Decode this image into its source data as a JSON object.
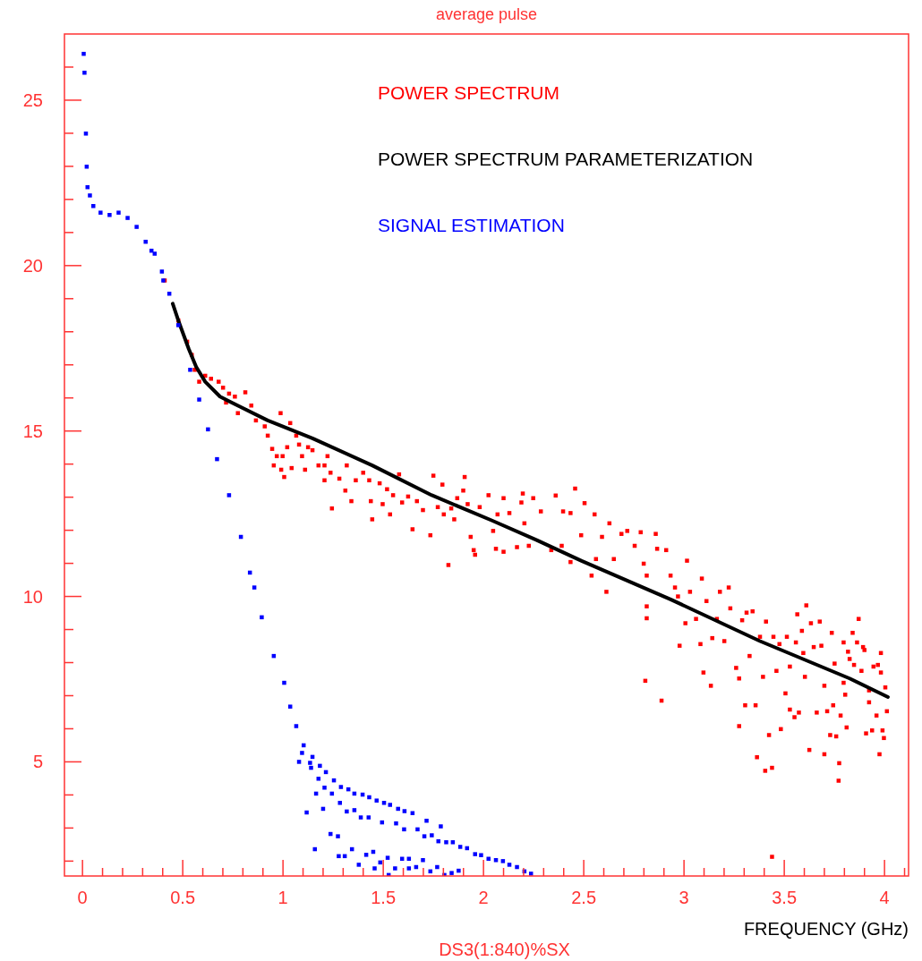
{
  "chart_data": {
    "type": "scatter",
    "title": "average pulse",
    "xlabel": "FREQUENCY (GHz)",
    "annotations": [
      "DS3(1:840)%SX"
    ],
    "xlim": [
      -0.09,
      4.12
    ],
    "ylim": [
      1.55,
      27
    ],
    "legend": "top",
    "xticks": [
      0,
      {
        "value": 0.1,
        "label": null
      },
      {
        "value": 0.2,
        "label": null
      },
      {
        "value": 0.3,
        "label": null
      },
      {
        "value": 0.4,
        "label": null
      },
      0.5,
      {
        "value": 0.6,
        "label": null
      },
      {
        "value": 0.7,
        "label": null
      },
      {
        "value": 0.8,
        "label": null
      },
      {
        "value": 0.9,
        "label": null
      },
      1,
      {
        "value": 1.1,
        "label": null
      },
      {
        "value": 1.2,
        "label": null
      },
      {
        "value": 1.3,
        "label": null
      },
      {
        "value": 1.4,
        "label": null
      },
      1.5,
      {
        "value": 1.6,
        "label": null
      },
      {
        "value": 1.7,
        "label": null
      },
      {
        "value": 1.8,
        "label": null
      },
      {
        "value": 1.9,
        "label": null
      },
      2,
      {
        "value": 2.1,
        "label": null
      },
      {
        "value": 2.2,
        "label": null
      },
      {
        "value": 2.3,
        "label": null
      },
      {
        "value": 2.4,
        "label": null
      },
      2.5,
      {
        "value": 2.6,
        "label": null
      },
      {
        "value": 2.7,
        "label": null
      },
      {
        "value": 2.8,
        "label": null
      },
      {
        "value": 2.9,
        "label": null
      },
      3,
      {
        "value": 3.1,
        "label": null
      },
      {
        "value": 3.2,
        "label": null
      },
      {
        "value": 3.3,
        "label": null
      },
      {
        "value": 3.4,
        "label": null
      },
      3.5,
      {
        "value": 3.6,
        "label": null
      },
      {
        "value": 3.7,
        "label": null
      },
      {
        "value": 3.8,
        "label": null
      },
      {
        "value": 3.9,
        "label": null
      },
      4,
      {
        "value": 4.1,
        "label": null
      }
    ],
    "yticks": [
      {
        "value": 2,
        "label": null
      },
      {
        "value": 3,
        "label": null
      },
      {
        "value": 4,
        "label": null
      },
      5,
      {
        "value": 6,
        "label": null
      },
      {
        "value": 7,
        "label": null
      },
      {
        "value": 8,
        "label": null
      },
      {
        "value": 9,
        "label": null
      },
      10,
      {
        "value": 11,
        "label": null
      },
      {
        "value": 12,
        "label": null
      },
      {
        "value": 13,
        "label": null
      },
      {
        "value": 14,
        "label": null
      },
      15,
      {
        "value": 16,
        "label": null
      },
      {
        "value": 17,
        "label": null
      },
      {
        "value": 18,
        "label": null
      },
      {
        "value": 19,
        "label": null
      },
      20,
      {
        "value": 21,
        "label": null
      },
      {
        "value": 22,
        "label": null
      },
      {
        "value": 23,
        "label": null
      },
      {
        "value": 24,
        "label": null
      },
      25,
      {
        "value": 26,
        "label": null
      }
    ],
    "series": [
      {
        "name": "POWER SPECTRUM",
        "color": "#ff0000",
        "marker": "square",
        "x": [
          0.41,
          0.478,
          0.522,
          0.545,
          0.56,
          0.582,
          0.612,
          0.641,
          0.679,
          0.701,
          0.731,
          0.76,
          0.812,
          0.842,
          0.775,
          0.716,
          0.865,
          0.909,
          0.924,
          0.946,
          0.969,
          0.998,
          1.006,
          0.991,
          0.954,
          0.988,
          1.021,
          1.036,
          1.043,
          1.066,
          1.08,
          1.095,
          1.11,
          1.125,
          1.147,
          1.177,
          1.207,
          1.207,
          1.237,
          1.222,
          1.244,
          1.281,
          1.318,
          1.311,
          1.341,
          1.363,
          1.4,
          1.43,
          1.445,
          1.438,
          1.482,
          1.497,
          1.519,
          1.534,
          1.549,
          1.579,
          1.594,
          1.624,
          1.646,
          1.668,
          1.698,
          1.735,
          1.75,
          1.772,
          1.795,
          1.802,
          1.825,
          1.839,
          1.854,
          1.869,
          1.899,
          1.906,
          1.921,
          1.936,
          1.951,
          1.958,
          1.981,
          2.025,
          2.048,
          2.062,
          2.07,
          2.1,
          2.1,
          2.129,
          2.167,
          2.189,
          2.204,
          2.226,
          2.248,
          2.196,
          2.286,
          2.36,
          2.397,
          2.434,
          2.457,
          2.504,
          2.554,
          2.338,
          2.39,
          2.434,
          2.487,
          2.539,
          2.561,
          2.591,
          2.613,
          2.628,
          2.65,
          2.688,
          2.717,
          2.754,
          2.784,
          2.799,
          2.814,
          2.807,
          2.814,
          2.814,
          2.859,
          2.866,
          2.888,
          2.911,
          2.933,
          2.955,
          2.97,
          2.978,
          3.007,
          3.015,
          3.03,
          3.06,
          3.082,
          3.097,
          3.089,
          3.112,
          3.134,
          3.141,
          3.164,
          3.179,
          3.201,
          3.223,
          3.231,
          3.26,
          3.275,
          3.275,
          3.29,
          3.305,
          3.312,
          3.327,
          3.342,
          3.357,
          3.364,
          3.379,
          3.394,
          3.405,
          3.409,
          3.424,
          3.439,
          3.446,
          3.461,
          3.476,
          3.483,
          3.506,
          3.513,
          3.528,
          3.528,
          3.551,
          3.558,
          3.565,
          3.573,
          3.588,
          3.595,
          3.603,
          3.61,
          3.625,
          3.633,
          3.647,
          3.662,
          3.677,
          3.685,
          3.7,
          3.7,
          3.714,
          3.729,
          3.737,
          3.744,
          3.751,
          3.759,
          3.774,
          3.781,
          3.796,
          3.796,
          3.804,
          3.811,
          3.818,
          3.826,
          3.841,
          3.848,
          3.863,
          3.871,
          3.885,
          3.893,
          3.9,
          3.908,
          3.923,
          3.923,
          3.938,
          3.945,
          3.96,
          3.967,
          3.975,
          3.982,
          3.982,
          3.99,
          3.997,
          4.004,
          4.012,
          3.439,
          3.771
        ],
        "values": [
          19.55,
          18.34,
          17.7,
          17.3,
          16.85,
          16.49,
          16.67,
          16.58,
          16.49,
          16.31,
          16.13,
          16.04,
          16.17,
          15.77,
          15.54,
          15.86,
          15.32,
          15.14,
          14.86,
          14.46,
          14.24,
          14.24,
          13.61,
          13.83,
          13.96,
          15.54,
          14.51,
          15.24,
          13.88,
          14.86,
          14.59,
          14.24,
          13.83,
          14.51,
          14.42,
          13.96,
          13.96,
          13.51,
          13.74,
          14.24,
          12.66,
          13.56,
          13.96,
          13.2,
          12.88,
          13.51,
          13.74,
          13.51,
          12.33,
          12.88,
          13.42,
          12.79,
          13.24,
          12.48,
          13.06,
          13.69,
          12.84,
          13.02,
          12.03,
          12.88,
          12.61,
          11.85,
          13.65,
          12.7,
          13.38,
          12.48,
          10.95,
          12.66,
          12.33,
          12.97,
          13.2,
          13.61,
          12.79,
          11.8,
          11.4,
          11.26,
          12.7,
          13.06,
          11.98,
          11.44,
          12.48,
          12.97,
          11.35,
          12.52,
          11.49,
          12.84,
          12.21,
          11.53,
          12.97,
          13.11,
          12.57,
          13.05,
          12.57,
          12.52,
          13.26,
          12.82,
          12.48,
          11.4,
          11.53,
          11.04,
          11.85,
          10.63,
          11.13,
          11.8,
          10.14,
          12.21,
          11.13,
          11.89,
          11.98,
          11.53,
          11.94,
          10.99,
          10.63,
          7.45,
          9.7,
          9.34,
          11.89,
          11.44,
          6.85,
          11.4,
          10.63,
          10.27,
          10.0,
          8.51,
          9.19,
          11.08,
          10.14,
          9.32,
          8.56,
          7.7,
          10.54,
          9.86,
          7.3,
          8.74,
          9.32,
          10.14,
          8.65,
          10.27,
          9.64,
          7.84,
          7.52,
          6.08,
          9.28,
          6.71,
          9.51,
          8.2,
          9.55,
          6.71,
          5.14,
          8.78,
          7.57,
          4.73,
          9.24,
          5.81,
          4.82,
          8.78,
          7.75,
          8.56,
          5.99,
          7.07,
          8.78,
          6.58,
          7.88,
          6.35,
          8.61,
          9.46,
          6.49,
          8.96,
          8.29,
          7.57,
          9.73,
          5.36,
          9.19,
          8.47,
          6.49,
          9.24,
          8.51,
          5.23,
          7.3,
          6.53,
          5.81,
          8.9,
          6.71,
          7.97,
          5.77,
          4.96,
          6.4,
          8.61,
          7.39,
          7.03,
          6.04,
          8.33,
          8.11,
          8.9,
          7.93,
          8.61,
          9.32,
          7.75,
          8.47,
          8.38,
          5.86,
          7.16,
          6.8,
          5.95,
          7.88,
          6.4,
          7.93,
          5.23,
          7.7,
          8.29,
          5.95,
          5.72,
          7.25,
          6.53,
          2.13,
          4.43
        ]
      },
      {
        "name": "POWER SPECTRUM PARAMETERIZATION",
        "color": "#000000",
        "type": "line",
        "marker": "none",
        "line_style": "solid",
        "x": [
          0.45,
          0.478,
          0.53,
          0.567,
          0.612,
          0.686,
          0.79,
          0.924,
          1.147,
          1.445,
          1.742,
          2.04,
          2.263,
          2.487,
          2.933,
          3.379,
          3.826,
          4.017
        ],
        "values": [
          18.85,
          18.34,
          17.48,
          16.94,
          16.49,
          16.04,
          15.72,
          15.32,
          14.78,
          13.96,
          13.06,
          12.3,
          11.71,
          11.08,
          9.91,
          8.65,
          7.52,
          6.96
        ]
      },
      {
        "name": "SIGNAL ESTIMATION",
        "color": "#0000ff",
        "marker": "square",
        "x": [
          0.006,
          0.01,
          0.017,
          0.021,
          0.025,
          0.037,
          0.054,
          0.09,
          0.135,
          0.18,
          0.225,
          0.27,
          0.315,
          0.344,
          0.36,
          0.396,
          0.403,
          0.433,
          0.478,
          0.537,
          0.582,
          0.626,
          0.671,
          0.731,
          0.79,
          0.835,
          0.857,
          0.894,
          0.954,
          1.006,
          1.036,
          1.066,
          1.103,
          1.095,
          1.08,
          1.147,
          1.135,
          1.14,
          1.184,
          1.214,
          1.254,
          1.289,
          1.326,
          1.356,
          1.397,
          1.43,
          1.467,
          1.504,
          1.534,
          1.574,
          1.606,
          1.646,
          1.177,
          1.165,
          1.207,
          1.244,
          1.284,
          1.318,
          1.356,
          1.388,
          1.427,
          1.494,
          1.564,
          1.604,
          1.671,
          1.705,
          1.742,
          1.787,
          1.716,
          1.775,
          1.814,
          1.847,
          1.884,
          1.918,
          1.958,
          1.988,
          2.025,
          2.062,
          2.097,
          2.129,
          2.167,
          2.204,
          2.237,
          1.118,
          1.159,
          1.2,
          1.237,
          1.274,
          1.278,
          1.308,
          1.344,
          1.378,
          1.415,
          1.45,
          1.457,
          1.485,
          1.522,
          1.559,
          1.594,
          1.628,
          1.628,
          1.664,
          1.698,
          1.735,
          1.769,
          1.805,
          1.841,
          1.876,
          1.527
        ],
        "values": [
          26.4,
          25.83,
          23.99,
          22.99,
          22.37,
          22.12,
          21.8,
          21.6,
          21.53,
          21.6,
          21.44,
          21.17,
          20.72,
          20.45,
          20.36,
          19.82,
          19.55,
          19.15,
          18.2,
          16.85,
          15.95,
          15.05,
          14.15,
          13.06,
          11.8,
          10.72,
          10.27,
          9.37,
          8.2,
          7.39,
          6.67,
          6.08,
          5.5,
          5.27,
          5.0,
          5.15,
          4.97,
          4.82,
          4.88,
          4.69,
          4.44,
          4.24,
          4.17,
          4.04,
          4.01,
          3.93,
          3.83,
          3.76,
          3.7,
          3.58,
          3.51,
          3.45,
          4.49,
          4.04,
          4.22,
          4.04,
          3.76,
          3.5,
          3.54,
          3.32,
          3.32,
          3.17,
          3.14,
          2.96,
          2.96,
          2.75,
          2.78,
          3.05,
          3.22,
          2.6,
          2.57,
          2.57,
          2.43,
          2.39,
          2.21,
          2.18,
          2.07,
          2.03,
          2.0,
          1.89,
          1.82,
          1.69,
          1.62,
          3.47,
          2.36,
          3.58,
          2.82,
          2.75,
          2.15,
          2.15,
          2.36,
          1.89,
          2.19,
          2.28,
          1.78,
          1.96,
          2.1,
          1.78,
          2.07,
          2.07,
          1.78,
          1.82,
          2.03,
          1.69,
          1.82,
          1.58,
          1.64,
          1.71,
          1.58
        ]
      }
    ]
  }
}
